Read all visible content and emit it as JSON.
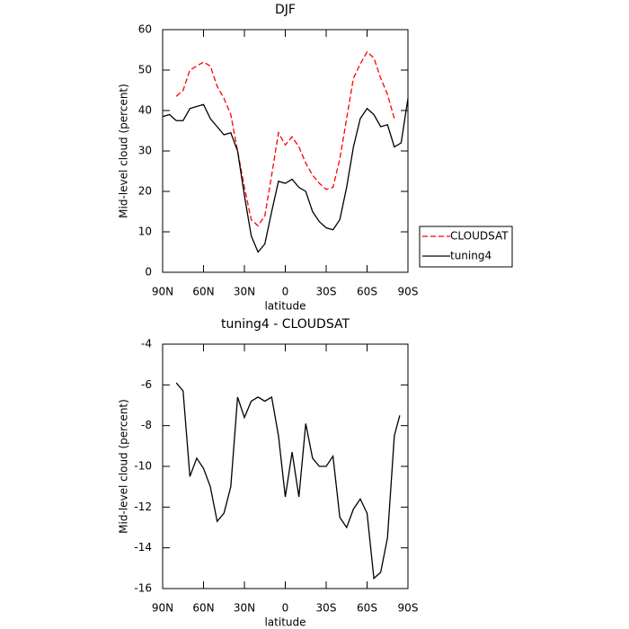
{
  "chart_data": [
    {
      "type": "line",
      "title": "DJF",
      "xlabel": "latitude",
      "ylabel": "Mid-level cloud (percent)",
      "x": [
        90,
        85,
        80,
        75,
        70,
        65,
        60,
        55,
        50,
        45,
        40,
        35,
        30,
        25,
        20,
        15,
        10,
        5,
        0,
        -5,
        -10,
        -15,
        -20,
        -25,
        -30,
        -35,
        -40,
        -45,
        -50,
        -55,
        -60,
        -65,
        -70,
        -75,
        -80,
        -85,
        -90
      ],
      "xlim": [
        90,
        -90
      ],
      "xticks": [
        {
          "value": 90,
          "label": "90N"
        },
        {
          "value": 60,
          "label": "60N"
        },
        {
          "value": 30,
          "label": "30N"
        },
        0,
        {
          "value": -30,
          "label": "30S"
        },
        {
          "value": -60,
          "label": "60S"
        },
        {
          "value": -90,
          "label": "90S"
        }
      ],
      "ylim": [
        0,
        60
      ],
      "yticks": [
        0,
        10,
        20,
        30,
        40,
        50,
        60
      ],
      "legend": "right",
      "series": [
        {
          "name": "CLOUDSAT",
          "color": "#ff0000",
          "dash": true,
          "values": [
            null,
            null,
            43.5,
            45,
            50,
            51,
            52,
            51,
            46,
            43,
            39,
            30,
            21,
            13,
            11.5,
            14,
            24,
            34.5,
            31.5,
            33.5,
            31,
            27,
            24,
            22,
            20.5,
            21,
            28,
            38,
            48,
            51.5,
            54.5,
            53,
            48,
            44,
            38,
            null,
            null
          ]
        },
        {
          "name": "tuning4",
          "color": "#000000",
          "dash": false,
          "values": [
            38.5,
            39,
            37.5,
            37.5,
            40.5,
            41,
            41.5,
            38,
            36,
            34,
            34.5,
            30,
            19,
            9,
            5,
            7,
            15,
            22.5,
            22,
            23,
            21,
            20,
            15,
            12.5,
            11,
            10.5,
            13,
            21,
            31,
            38,
            40.5,
            39,
            36,
            36.5,
            31,
            32,
            43
          ]
        }
      ]
    },
    {
      "type": "line",
      "title": "tuning4 - CLOUDSAT",
      "xlabel": "latitude",
      "ylabel": "Mid-level cloud (percent)",
      "x": [
        80,
        75,
        70,
        65,
        60,
        55,
        50,
        45,
        40,
        35,
        30,
        25,
        20,
        15,
        10,
        5,
        0,
        -5,
        -10,
        -15,
        -20,
        -25,
        -30,
        -35,
        -40,
        -45,
        -50,
        -55,
        -60,
        -65,
        -70,
        -75,
        -80,
        -84
      ],
      "xlim": [
        90,
        -90
      ],
      "xticks": [
        {
          "value": 90,
          "label": "90N"
        },
        {
          "value": 60,
          "label": "60N"
        },
        {
          "value": 30,
          "label": "30N"
        },
        0,
        {
          "value": -30,
          "label": "30S"
        },
        {
          "value": -60,
          "label": "60S"
        },
        {
          "value": -90,
          "label": "90S"
        }
      ],
      "ylim": [
        -16,
        -4
      ],
      "yticks": [
        -16,
        -14,
        -12,
        -10,
        -8,
        -6,
        -4
      ],
      "series": [
        {
          "name": "tuning4 - CLOUDSAT",
          "color": "#000000",
          "dash": false,
          "values": [
            -5.9,
            -6.3,
            -10.5,
            -9.6,
            -10.1,
            -11,
            -12.7,
            -12.3,
            -11,
            -6.6,
            -7.6,
            -6.8,
            -6.6,
            -6.8,
            -6.6,
            -8.5,
            -11.5,
            -9.3,
            -11.5,
            -7.9,
            -9.6,
            -10,
            -10,
            -9.5,
            -12.5,
            -13,
            -12.1,
            -11.6,
            -12.3,
            -15.5,
            -15.2,
            -13.5,
            -8.5,
            -7.5
          ]
        }
      ]
    }
  ]
}
